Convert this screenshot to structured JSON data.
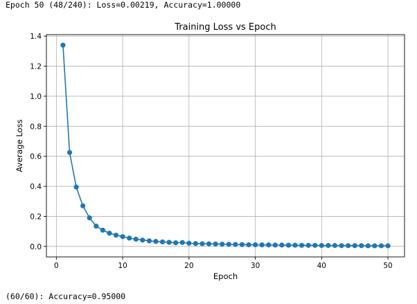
{
  "log": {
    "top_line": "Epoch 50 (48/240): Loss=0.00219, Accuracy=1.00000",
    "bottom_line": "(60/60): Accuracy=0.95000"
  },
  "colors": {
    "series": "#1f77b4",
    "grid": "#b0b0b0"
  },
  "chart_data": {
    "type": "line",
    "title": "Training Loss vs Epoch",
    "xlabel": "Epoch",
    "ylabel": "Average Loss",
    "xlim": [
      -1.5,
      52.5
    ],
    "ylim": [
      -0.07,
      1.41
    ],
    "xticks": [
      0,
      10,
      20,
      30,
      40,
      50
    ],
    "yticks": [
      0.0,
      0.2,
      0.4,
      0.6,
      0.8,
      1.0,
      1.2,
      1.4
    ],
    "ytick_labels": [
      "0.0",
      "0.2",
      "0.4",
      "0.6",
      "0.8",
      "1.0",
      "1.2",
      "1.4"
    ],
    "grid": true,
    "markers": true,
    "series": [
      {
        "x": [
          1,
          2,
          3,
          4,
          5,
          6,
          7,
          8,
          9,
          10,
          11,
          12,
          13,
          14,
          15,
          16,
          17,
          18,
          19,
          20,
          21,
          22,
          23,
          24,
          25,
          26,
          27,
          28,
          29,
          30,
          31,
          32,
          33,
          34,
          35,
          36,
          37,
          38,
          39,
          40,
          41,
          42,
          43,
          44,
          45,
          46,
          47,
          48,
          49,
          50
        ],
        "values": [
          1.34,
          0.625,
          0.395,
          0.27,
          0.19,
          0.135,
          0.108,
          0.088,
          0.075,
          0.065,
          0.055,
          0.048,
          0.042,
          0.037,
          0.033,
          0.03,
          0.027,
          0.024,
          0.026,
          0.021,
          0.019,
          0.018,
          0.017,
          0.016,
          0.015,
          0.014,
          0.013,
          0.012,
          0.011,
          0.011,
          0.01,
          0.01,
          0.009,
          0.009,
          0.008,
          0.008,
          0.007,
          0.007,
          0.007,
          0.006,
          0.006,
          0.006,
          0.005,
          0.005,
          0.005,
          0.005,
          0.004,
          0.004,
          0.004,
          0.004
        ]
      }
    ]
  }
}
